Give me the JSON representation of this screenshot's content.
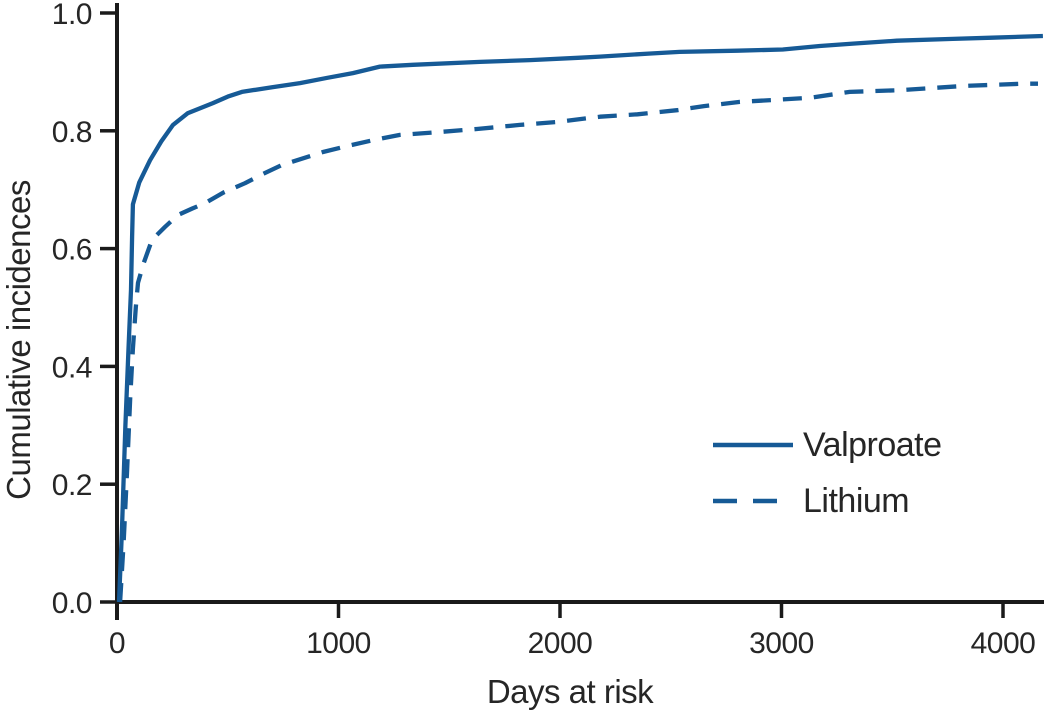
{
  "figure": {
    "background": "#ffffff",
    "axis_color": "#1a1a1a",
    "text_color": "#262626",
    "accent_color": "#165a96"
  },
  "legend": {
    "valproate_label": "Valproate",
    "lithium_label": "Lithium"
  },
  "chart_data": {
    "type": "line",
    "title": "",
    "xlabel": "Days at risk",
    "ylabel": "Cumulative incidences",
    "xlim": [
      0,
      4185
    ],
    "ylim": [
      0.0,
      1.0
    ],
    "grid": false,
    "legend_position": "inside-lower-right",
    "x_ticks": [
      0,
      1000,
      2000,
      3000,
      4000
    ],
    "x_tick_labels": [
      "0",
      "1000",
      "2000",
      "3000",
      "4000"
    ],
    "y_ticks": [
      0.0,
      0.2,
      0.4,
      0.6,
      0.8,
      1.0
    ],
    "y_tick_labels": [
      "0.0",
      "0.2",
      "0.4",
      "0.6",
      "0.8",
      "1.0"
    ],
    "series": [
      {
        "name": "Valproate",
        "style": "solid",
        "color": "#165a96",
        "points": [
          [
            9,
            0
          ],
          [
            22,
            0.12
          ],
          [
            38,
            0.3
          ],
          [
            52,
            0.43
          ],
          [
            63,
            0.53
          ],
          [
            68,
            0.62
          ],
          [
            72,
            0.675
          ],
          [
            100,
            0.712
          ],
          [
            149,
            0.75
          ],
          [
            200,
            0.782
          ],
          [
            253,
            0.81
          ],
          [
            320,
            0.83
          ],
          [
            433,
            0.847
          ],
          [
            500,
            0.858
          ],
          [
            564,
            0.866
          ],
          [
            700,
            0.874
          ],
          [
            826,
            0.881
          ],
          [
            950,
            0.89
          ],
          [
            1065,
            0.898
          ],
          [
            1187,
            0.909
          ],
          [
            1336,
            0.912
          ],
          [
            1639,
            0.917
          ],
          [
            1864,
            0.92
          ],
          [
            2081,
            0.924
          ],
          [
            2180,
            0.926
          ],
          [
            2400,
            0.931
          ],
          [
            2540,
            0.934
          ],
          [
            2800,
            0.936
          ],
          [
            3006,
            0.938
          ],
          [
            3173,
            0.944
          ],
          [
            3323,
            0.948
          ],
          [
            3521,
            0.953
          ],
          [
            3774,
            0.956
          ],
          [
            3950,
            0.958
          ],
          [
            4180,
            0.961
          ]
        ]
      },
      {
        "name": "Lithium",
        "style": "dashed",
        "color": "#165a96",
        "points": [
          [
            14,
            0
          ],
          [
            30,
            0.1
          ],
          [
            45,
            0.22
          ],
          [
            60,
            0.35
          ],
          [
            72,
            0.43
          ],
          [
            85,
            0.5
          ],
          [
            95,
            0.542
          ],
          [
            120,
            0.575
          ],
          [
            158,
            0.615
          ],
          [
            217,
            0.637
          ],
          [
            275,
            0.657
          ],
          [
            340,
            0.668
          ],
          [
            397,
            0.677
          ],
          [
            480,
            0.695
          ],
          [
            578,
            0.711
          ],
          [
            660,
            0.727
          ],
          [
            745,
            0.742
          ],
          [
            930,
            0.764
          ],
          [
            1050,
            0.775
          ],
          [
            1155,
            0.784
          ],
          [
            1277,
            0.793
          ],
          [
            1458,
            0.798
          ],
          [
            1625,
            0.803
          ],
          [
            1819,
            0.81
          ],
          [
            1986,
            0.815
          ],
          [
            2180,
            0.824
          ],
          [
            2350,
            0.828
          ],
          [
            2528,
            0.835
          ],
          [
            2650,
            0.842
          ],
          [
            2812,
            0.849
          ],
          [
            3128,
            0.856
          ],
          [
            3308,
            0.866
          ],
          [
            3534,
            0.869
          ],
          [
            3818,
            0.876
          ],
          [
            4089,
            0.88
          ],
          [
            4158,
            0.88
          ]
        ]
      }
    ]
  }
}
